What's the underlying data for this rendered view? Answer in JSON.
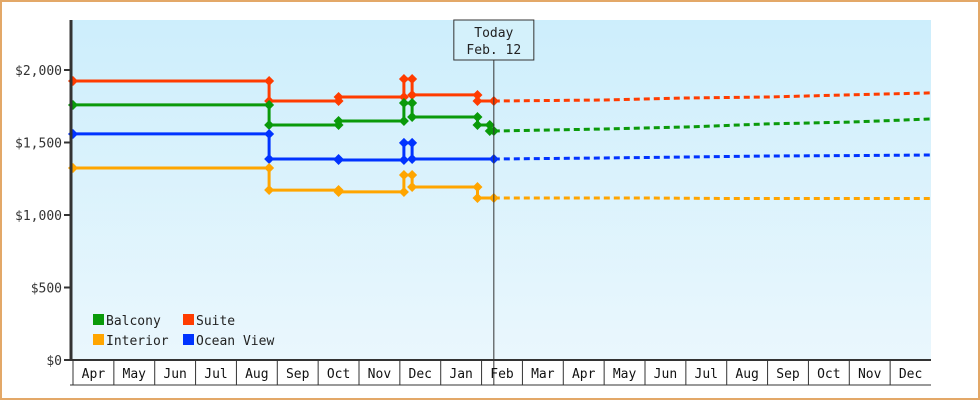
{
  "chart_data": {
    "type": "line",
    "title": "",
    "xlabel": "",
    "ylabel": "",
    "ylim": [
      0,
      2344
    ],
    "y_ticks": [
      {
        "value": 0,
        "label": "$0"
      },
      {
        "value": 500,
        "label": "$500"
      },
      {
        "value": 1000,
        "label": "$1,000"
      },
      {
        "value": 1500,
        "label": "$1,500"
      },
      {
        "value": 2000,
        "label": "$2,000"
      }
    ],
    "categories": [
      "Apr",
      "May",
      "Jun",
      "Jul",
      "Aug",
      "Sep",
      "Oct",
      "Nov",
      "Dec",
      "Jan",
      "Feb",
      "Mar",
      "Apr",
      "May",
      "Jun",
      "Jul",
      "Aug",
      "Sep",
      "Oct",
      "Nov",
      "Dec"
    ],
    "today_marker": {
      "line1": "Today",
      "line2": "Feb. 12",
      "month_index": 10.3
    },
    "legend": [
      {
        "name": "Balcony",
        "color": "#0a9a0a"
      },
      {
        "name": "Suite",
        "color": "#ff3c00"
      },
      {
        "name": "Interior",
        "color": "#ffa500"
      },
      {
        "name": "Ocean View",
        "color": "#0033ff"
      }
    ],
    "legend_position": "lower-left",
    "grid": false,
    "series": [
      {
        "name": "Suite",
        "color": "#ff3c00",
        "history": [
          [
            0,
            1924
          ],
          [
            4.8,
            1924
          ],
          [
            4.8,
            1786
          ],
          [
            6.5,
            1786
          ],
          [
            6.5,
            1814
          ],
          [
            8.1,
            1814
          ],
          [
            8.1,
            1938
          ],
          [
            8.3,
            1938
          ],
          [
            8.3,
            1828
          ],
          [
            9.9,
            1828
          ],
          [
            9.9,
            1786
          ],
          [
            10.3,
            1786
          ]
        ],
        "forecast": [
          [
            10.3,
            1786
          ],
          [
            13,
            1793
          ],
          [
            15,
            1807
          ],
          [
            17,
            1814
          ],
          [
            19,
            1828
          ],
          [
            21,
            1842
          ]
        ]
      },
      {
        "name": "Balcony",
        "color": "#0a9a0a",
        "history": [
          [
            0,
            1759
          ],
          [
            4.8,
            1759
          ],
          [
            4.8,
            1621
          ],
          [
            6.5,
            1621
          ],
          [
            6.5,
            1648
          ],
          [
            8.1,
            1648
          ],
          [
            8.1,
            1772
          ],
          [
            8.3,
            1772
          ],
          [
            8.3,
            1676
          ],
          [
            9.9,
            1676
          ],
          [
            9.9,
            1621
          ],
          [
            10.2,
            1621
          ],
          [
            10.2,
            1579
          ],
          [
            10.3,
            1579
          ]
        ],
        "forecast": [
          [
            10.3,
            1579
          ],
          [
            13,
            1593
          ],
          [
            15,
            1607
          ],
          [
            17,
            1628
          ],
          [
            19,
            1641
          ],
          [
            21,
            1662
          ]
        ]
      },
      {
        "name": "Ocean View",
        "color": "#0033ff",
        "history": [
          [
            0,
            1559
          ],
          [
            4.8,
            1559
          ],
          [
            4.8,
            1386
          ],
          [
            6.5,
            1386
          ],
          [
            6.5,
            1379
          ],
          [
            8.1,
            1379
          ],
          [
            8.1,
            1497
          ],
          [
            8.3,
            1497
          ],
          [
            8.3,
            1386
          ],
          [
            10.3,
            1386
          ]
        ],
        "forecast": [
          [
            10.3,
            1386
          ],
          [
            13,
            1393
          ],
          [
            15,
            1400
          ],
          [
            17,
            1407
          ],
          [
            19,
            1410
          ],
          [
            21,
            1414
          ]
        ]
      },
      {
        "name": "Interior",
        "color": "#ffa500",
        "history": [
          [
            0,
            1324
          ],
          [
            4.8,
            1324
          ],
          [
            4.8,
            1172
          ],
          [
            6.5,
            1172
          ],
          [
            6.5,
            1159
          ],
          [
            8.1,
            1159
          ],
          [
            8.1,
            1276
          ],
          [
            8.3,
            1276
          ],
          [
            8.3,
            1193
          ],
          [
            9.9,
            1193
          ],
          [
            9.9,
            1117
          ],
          [
            10.3,
            1117
          ]
        ],
        "forecast": [
          [
            10.3,
            1117
          ],
          [
            14,
            1117
          ],
          [
            16,
            1114
          ],
          [
            21,
            1114
          ]
        ]
      }
    ]
  }
}
